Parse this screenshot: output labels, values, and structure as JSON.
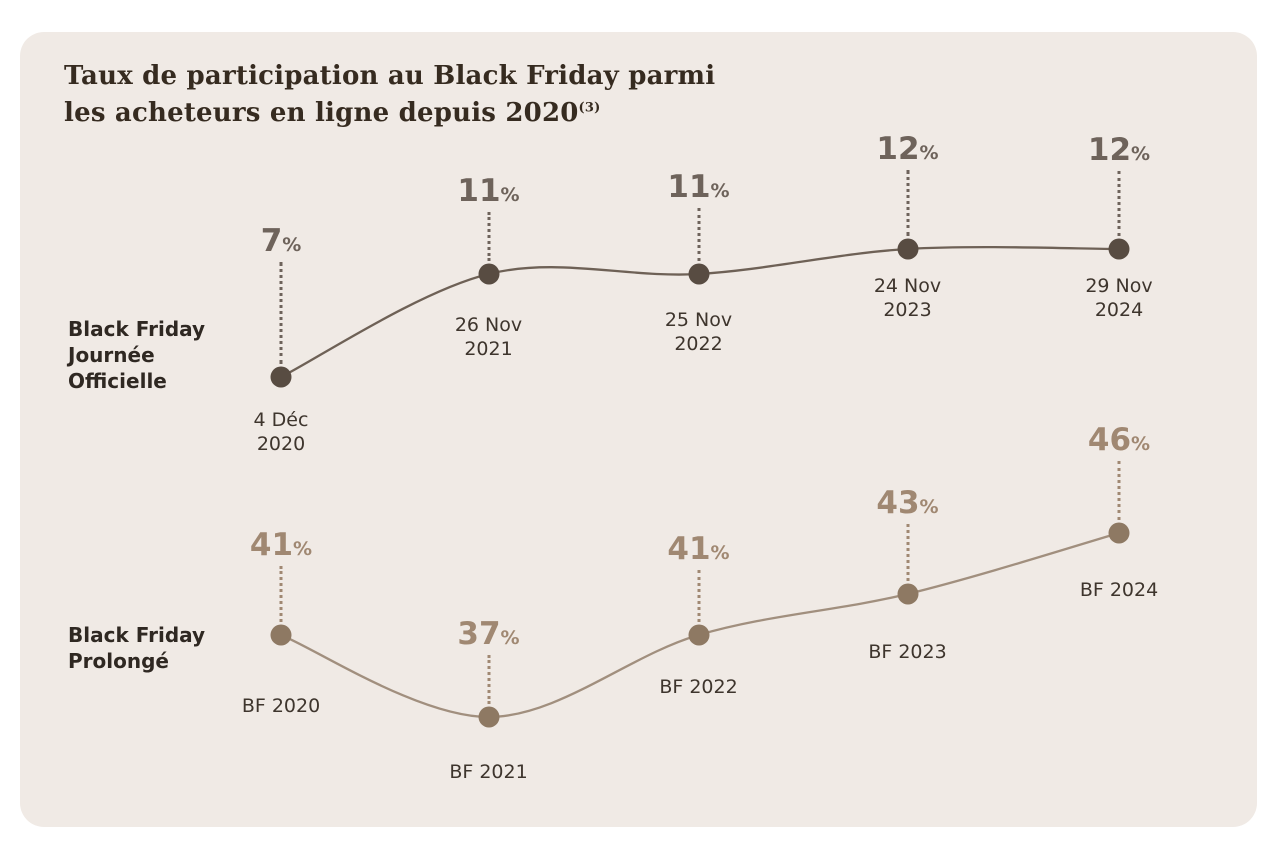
{
  "colors": {
    "page_background": "#ffffff",
    "card_background": "#f0eae5",
    "title": "#362b20",
    "series_label": "#2f2822",
    "date_label": "#3e352d",
    "official": {
      "line": "#6e6156",
      "dot": "#584c42",
      "percent": "#6e635b"
    },
    "extended": {
      "line": "#a18f7e",
      "dot": "#8e7963",
      "percent": "#a08872"
    }
  },
  "chart_data": {
    "type": "line",
    "title": "Taux de participation au Black Friday parmi les acheteurs en ligne depuis 2020",
    "title_line1": "Taux de participation au Black Friday parmi",
    "title_line2": "les acheteurs en ligne depuis 2020",
    "title_sup": "(3)",
    "unit": "%",
    "legend_position": "left",
    "grid": false,
    "series": [
      {
        "name": "Black Friday Journée Officielle",
        "label_lines": [
          "Black Friday",
          "Journée",
          "Officielle"
        ],
        "values": [
          7,
          11,
          11,
          12,
          12
        ],
        "value_labels": [
          "7%",
          "11%",
          "11%",
          "12%",
          "12%"
        ],
        "x_labels": [
          [
            "4 Déc",
            "2020"
          ],
          [
            "26 Nov",
            "2021"
          ],
          [
            "25 Nov",
            "2022"
          ],
          [
            "24 Nov",
            "2023"
          ],
          [
            "29 Nov",
            "2024"
          ]
        ]
      },
      {
        "name": "Black Friday Prolongé",
        "label_lines": [
          "Black Friday",
          "Prolongé"
        ],
        "values": [
          41,
          37,
          41,
          43,
          46
        ],
        "value_labels": [
          "41%",
          "37%",
          "41%",
          "43%",
          "46%"
        ],
        "x_labels": [
          [
            "BF 2020"
          ],
          [
            "BF 2021"
          ],
          [
            "BF 2022"
          ],
          [
            "BF 2023"
          ],
          [
            "BF 2024"
          ]
        ]
      }
    ]
  }
}
